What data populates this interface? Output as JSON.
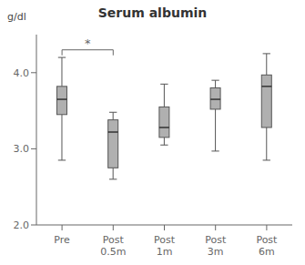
{
  "chart_data": {
    "type": "box",
    "title": "Serum albumin",
    "ylabel": "g/dl",
    "categories": [
      "Pre",
      "Post\n0.5m",
      "Post\n1m",
      "Post\n3m",
      "Post\n6m"
    ],
    "boxes": [
      {
        "q1": 3.45,
        "median": 3.65,
        "q3": 3.82,
        "whislo": 2.85,
        "whishi": 4.2
      },
      {
        "q1": 2.75,
        "median": 3.22,
        "q3": 3.38,
        "whislo": 2.6,
        "whishi": 3.48
      },
      {
        "q1": 3.15,
        "median": 3.28,
        "q3": 3.55,
        "whislo": 3.05,
        "whishi": 3.85
      },
      {
        "q1": 3.52,
        "median": 3.65,
        "q3": 3.8,
        "whislo": 2.97,
        "whishi": 3.9
      },
      {
        "q1": 3.28,
        "median": 3.82,
        "q3": 3.97,
        "whislo": 2.85,
        "whishi": 4.25
      }
    ],
    "color": "#b0b0b0",
    "ylim": [
      2.0,
      4.5
    ],
    "yticks": [
      {
        "value": 2.0,
        "label": "2.0"
      },
      {
        "value": 3.0,
        "label": "3.0"
      },
      {
        "value": 4.0,
        "label": "4.0"
      }
    ],
    "annotations": [
      {
        "label": "*",
        "from": "Pre",
        "to": "Post\n0.5m",
        "y": 4.3
      }
    ]
  }
}
